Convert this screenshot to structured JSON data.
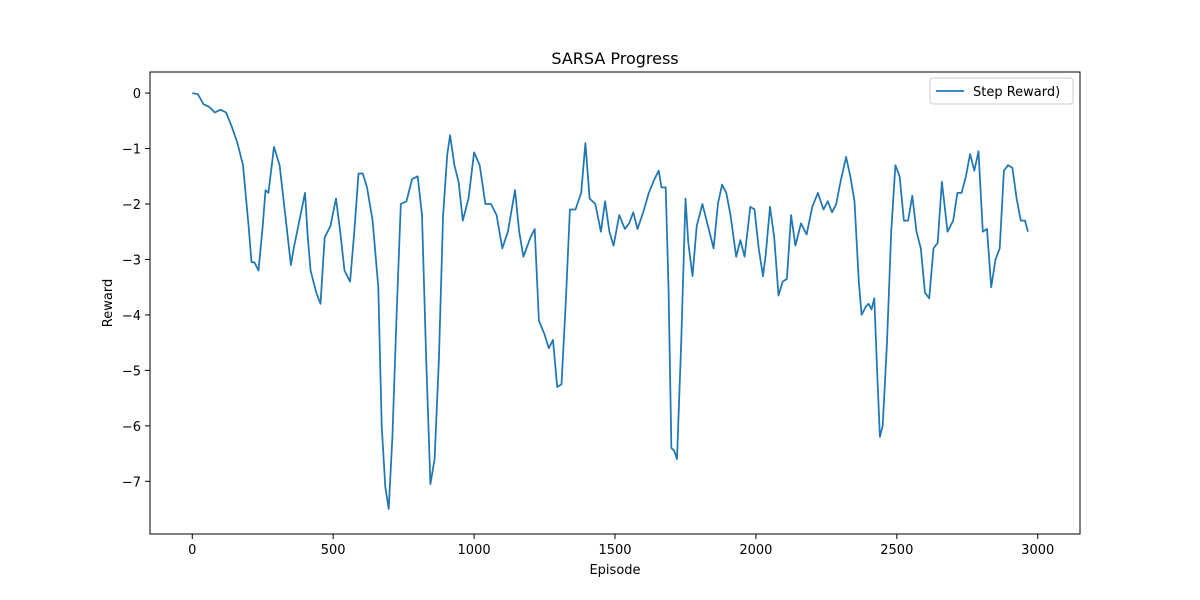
{
  "chart_data": {
    "type": "line",
    "title": "SARSA Progress",
    "xlabel": "Episode",
    "ylabel": "Reward",
    "xlim": [
      -150,
      3150
    ],
    "ylim": [
      -7.95,
      0.38
    ],
    "xticks": [
      0,
      500,
      1000,
      1500,
      2000,
      2500,
      3000
    ],
    "yticks": [
      0,
      -1,
      -2,
      -3,
      -4,
      -5,
      -6,
      -7
    ],
    "xtick_labels": [
      "0",
      "500",
      "1000",
      "1500",
      "2000",
      "2500",
      "3000"
    ],
    "ytick_labels": [
      "0",
      "−1",
      "−2",
      "−3",
      "−4",
      "−5",
      "−6",
      "−7"
    ],
    "grid": false,
    "legend_position": "top-right",
    "color": "#1f77b4",
    "series": [
      {
        "name": "Step Reward)",
        "points": [
          [
            0,
            0
          ],
          [
            20,
            -0.02
          ],
          [
            40,
            -0.2
          ],
          [
            60,
            -0.25
          ],
          [
            80,
            -0.35
          ],
          [
            100,
            -0.3
          ],
          [
            120,
            -0.35
          ],
          [
            140,
            -0.6
          ],
          [
            160,
            -0.9
          ],
          [
            180,
            -1.3
          ],
          [
            200,
            -2.4
          ],
          [
            210,
            -3.05
          ],
          [
            220,
            -3.05
          ],
          [
            235,
            -3.2
          ],
          [
            250,
            -2.4
          ],
          [
            260,
            -1.75
          ],
          [
            270,
            -1.8
          ],
          [
            290,
            -0.97
          ],
          [
            310,
            -1.3
          ],
          [
            330,
            -2.2
          ],
          [
            350,
            -3.1
          ],
          [
            360,
            -2.8
          ],
          [
            380,
            -2.3
          ],
          [
            400,
            -1.8
          ],
          [
            410,
            -2.6
          ],
          [
            420,
            -3.2
          ],
          [
            440,
            -3.6
          ],
          [
            455,
            -3.8
          ],
          [
            470,
            -2.6
          ],
          [
            490,
            -2.4
          ],
          [
            510,
            -1.9
          ],
          [
            525,
            -2.5
          ],
          [
            540,
            -3.2
          ],
          [
            560,
            -3.4
          ],
          [
            575,
            -2.5
          ],
          [
            590,
            -1.45
          ],
          [
            605,
            -1.45
          ],
          [
            620,
            -1.7
          ],
          [
            640,
            -2.3
          ],
          [
            660,
            -3.5
          ],
          [
            672,
            -6.0
          ],
          [
            685,
            -7.1
          ],
          [
            697,
            -7.5
          ],
          [
            710,
            -6.2
          ],
          [
            725,
            -4.0
          ],
          [
            740,
            -2.0
          ],
          [
            760,
            -1.95
          ],
          [
            780,
            -1.55
          ],
          [
            800,
            -1.5
          ],
          [
            815,
            -2.2
          ],
          [
            830,
            -4.8
          ],
          [
            845,
            -7.05
          ],
          [
            860,
            -6.6
          ],
          [
            875,
            -4.8
          ],
          [
            890,
            -2.2
          ],
          [
            905,
            -1.1
          ],
          [
            915,
            -0.76
          ],
          [
            930,
            -1.3
          ],
          [
            945,
            -1.6
          ],
          [
            960,
            -2.3
          ],
          [
            980,
            -1.9
          ],
          [
            1000,
            -1.07
          ],
          [
            1020,
            -1.3
          ],
          [
            1040,
            -2.0
          ],
          [
            1060,
            -2.0
          ],
          [
            1080,
            -2.2
          ],
          [
            1100,
            -2.8
          ],
          [
            1120,
            -2.5
          ],
          [
            1145,
            -1.75
          ],
          [
            1160,
            -2.5
          ],
          [
            1175,
            -2.95
          ],
          [
            1200,
            -2.6
          ],
          [
            1215,
            -2.45
          ],
          [
            1230,
            -4.1
          ],
          [
            1250,
            -4.35
          ],
          [
            1265,
            -4.6
          ],
          [
            1280,
            -4.45
          ],
          [
            1295,
            -5.3
          ],
          [
            1310,
            -5.25
          ],
          [
            1325,
            -3.8
          ],
          [
            1340,
            -2.1
          ],
          [
            1360,
            -2.1
          ],
          [
            1380,
            -1.8
          ],
          [
            1395,
            -0.9
          ],
          [
            1410,
            -1.9
          ],
          [
            1430,
            -2.0
          ],
          [
            1450,
            -2.5
          ],
          [
            1465,
            -1.95
          ],
          [
            1480,
            -2.5
          ],
          [
            1495,
            -2.75
          ],
          [
            1515,
            -2.2
          ],
          [
            1535,
            -2.45
          ],
          [
            1550,
            -2.35
          ],
          [
            1565,
            -2.15
          ],
          [
            1580,
            -2.45
          ],
          [
            1600,
            -2.15
          ],
          [
            1620,
            -1.8
          ],
          [
            1640,
            -1.55
          ],
          [
            1655,
            -1.4
          ],
          [
            1665,
            -1.7
          ],
          [
            1680,
            -1.7
          ],
          [
            1690,
            -3.5
          ],
          [
            1700,
            -6.4
          ],
          [
            1710,
            -6.45
          ],
          [
            1720,
            -6.6
          ],
          [
            1735,
            -4.5
          ],
          [
            1750,
            -1.9
          ],
          [
            1760,
            -2.7
          ],
          [
            1775,
            -3.3
          ],
          [
            1790,
            -2.4
          ],
          [
            1810,
            -2.0
          ],
          [
            1830,
            -2.4
          ],
          [
            1850,
            -2.8
          ],
          [
            1865,
            -2.0
          ],
          [
            1880,
            -1.65
          ],
          [
            1895,
            -1.8
          ],
          [
            1910,
            -2.2
          ],
          [
            1930,
            -2.95
          ],
          [
            1945,
            -2.65
          ],
          [
            1960,
            -2.95
          ],
          [
            1980,
            -2.05
          ],
          [
            1995,
            -2.1
          ],
          [
            2010,
            -2.8
          ],
          [
            2025,
            -3.3
          ],
          [
            2035,
            -2.9
          ],
          [
            2050,
            -2.05
          ],
          [
            2065,
            -2.6
          ],
          [
            2080,
            -3.65
          ],
          [
            2095,
            -3.4
          ],
          [
            2110,
            -3.35
          ],
          [
            2125,
            -2.2
          ],
          [
            2140,
            -2.75
          ],
          [
            2160,
            -2.35
          ],
          [
            2180,
            -2.55
          ],
          [
            2200,
            -2.05
          ],
          [
            2220,
            -1.8
          ],
          [
            2240,
            -2.1
          ],
          [
            2255,
            -1.95
          ],
          [
            2270,
            -2.15
          ],
          [
            2285,
            -2.0
          ],
          [
            2300,
            -1.6
          ],
          [
            2320,
            -1.15
          ],
          [
            2335,
            -1.5
          ],
          [
            2350,
            -1.95
          ],
          [
            2365,
            -3.4
          ],
          [
            2375,
            -4.0
          ],
          [
            2390,
            -3.85
          ],
          [
            2400,
            -3.8
          ],
          [
            2410,
            -3.9
          ],
          [
            2420,
            -3.7
          ],
          [
            2430,
            -5.0
          ],
          [
            2440,
            -6.2
          ],
          [
            2450,
            -6.0
          ],
          [
            2465,
            -4.5
          ],
          [
            2480,
            -2.5
          ],
          [
            2495,
            -1.3
          ],
          [
            2510,
            -1.5
          ],
          [
            2525,
            -2.3
          ],
          [
            2540,
            -2.3
          ],
          [
            2555,
            -1.85
          ],
          [
            2570,
            -2.5
          ],
          [
            2585,
            -2.8
          ],
          [
            2600,
            -3.6
          ],
          [
            2615,
            -3.7
          ],
          [
            2630,
            -2.8
          ],
          [
            2645,
            -2.7
          ],
          [
            2660,
            -1.6
          ],
          [
            2680,
            -2.5
          ],
          [
            2700,
            -2.3
          ],
          [
            2715,
            -1.8
          ],
          [
            2730,
            -1.8
          ],
          [
            2745,
            -1.5
          ],
          [
            2760,
            -1.1
          ],
          [
            2775,
            -1.4
          ],
          [
            2790,
            -1.05
          ],
          [
            2805,
            -2.5
          ],
          [
            2820,
            -2.45
          ],
          [
            2835,
            -3.5
          ],
          [
            2850,
            -3.0
          ],
          [
            2865,
            -2.8
          ],
          [
            2880,
            -1.4
          ],
          [
            2895,
            -1.3
          ],
          [
            2910,
            -1.35
          ],
          [
            2925,
            -1.9
          ],
          [
            2940,
            -2.3
          ],
          [
            2955,
            -2.3
          ],
          [
            2965,
            -2.5
          ]
        ]
      }
    ]
  }
}
